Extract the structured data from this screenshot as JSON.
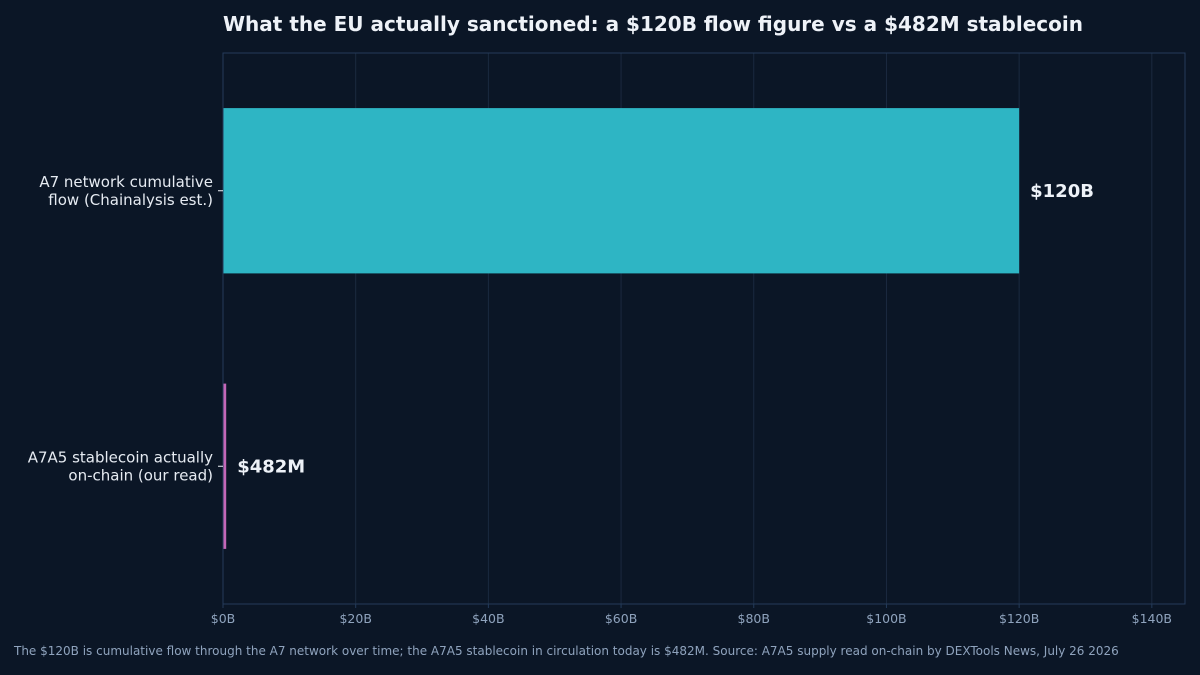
{
  "chart_data": {
    "type": "bar",
    "orientation": "horizontal",
    "title": "What the EU actually sanctioned: a $120B flow figure vs a $482M stablecoin",
    "categories": [
      "A7 network cumulative\nflow (Chainalysis est.)",
      "A7A5 stablecoin actually\non-chain (our read)"
    ],
    "values": [
      120,
      0.482
    ],
    "value_unit": "billion USD",
    "data_labels": [
      "$120B",
      "$482M"
    ],
    "bar_colors": [
      "#2eb5c4",
      "#c467b8"
    ],
    "xlim": [
      0,
      145
    ],
    "x_ticks": [
      0,
      20,
      40,
      60,
      80,
      100,
      120,
      140
    ],
    "x_tick_labels": [
      "$0B",
      "$20B",
      "$40B",
      "$60B",
      "$80B",
      "$100B",
      "$120B",
      "$140B"
    ],
    "xlabel": "",
    "ylabel": "",
    "grid": "vertical",
    "footnote": "The $120B is cumulative flow through the A7 network over time; the A7A5 stablecoin in circulation today is $482M.   Source: A7A5 supply read on-chain by DEXTools News, July 26 2026"
  },
  "colors": {
    "background": "#0b1626",
    "plot_border": "#243b5a",
    "grid": "#1b2a40",
    "text": "#eef2f8",
    "muted_text": "#8fa3bd"
  }
}
